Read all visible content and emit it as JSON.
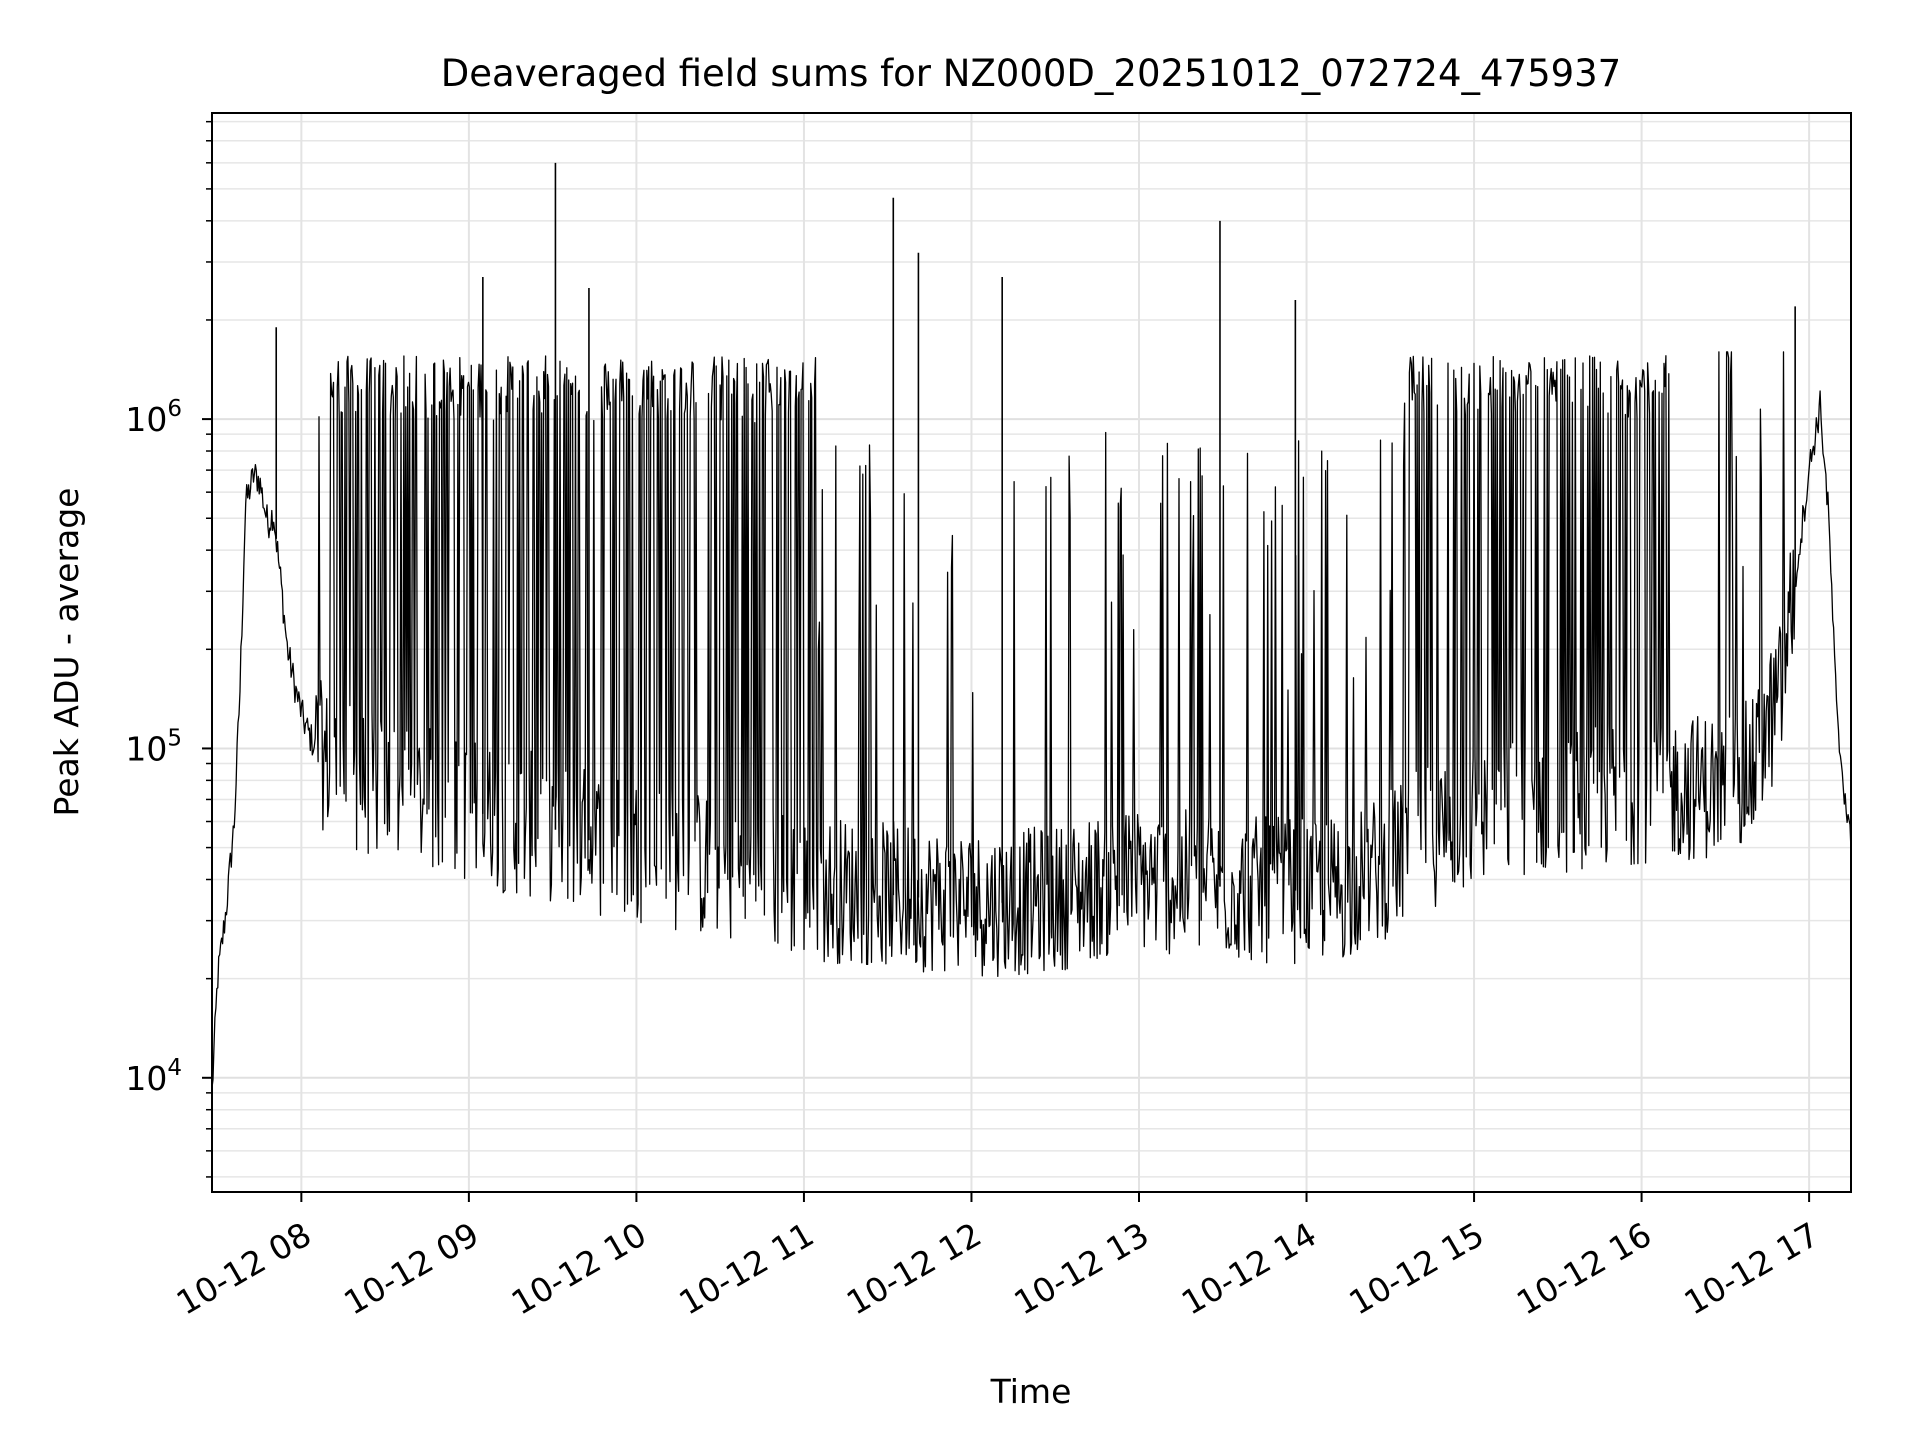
{
  "chart_data": {
    "type": "line",
    "title": "Deaveraged field sums for NZ000D_20251012_072724_475937",
    "xlabel": "Time",
    "ylabel": "Peak ADU - average",
    "yscale": "log",
    "ylim": [
      4500,
      8500000
    ],
    "xlim": [
      "2025-10-12 07:28",
      "2025-10-12 17:15"
    ],
    "grid": true,
    "line_color": "#000000",
    "x_ticks": [
      {
        "value": "2025-10-12 08:00",
        "label": "10-12 08"
      },
      {
        "value": "2025-10-12 09:00",
        "label": "10-12 09"
      },
      {
        "value": "2025-10-12 10:00",
        "label": "10-12 10"
      },
      {
        "value": "2025-10-12 11:00",
        "label": "10-12 11"
      },
      {
        "value": "2025-10-12 12:00",
        "label": "10-12 12"
      },
      {
        "value": "2025-10-12 13:00",
        "label": "10-12 13"
      },
      {
        "value": "2025-10-12 14:00",
        "label": "10-12 14"
      },
      {
        "value": "2025-10-12 15:00",
        "label": "10-12 15"
      },
      {
        "value": "2025-10-12 16:00",
        "label": "10-12 16"
      },
      {
        "value": "2025-10-12 17:00",
        "label": "10-12 17"
      }
    ],
    "y_ticks": [
      {
        "value": 10000,
        "base": "10",
        "exp": "4"
      },
      {
        "value": 100000,
        "base": "10",
        "exp": "5"
      },
      {
        "value": 1000000,
        "base": "10",
        "exp": "6"
      }
    ],
    "series": [
      {
        "x": [
          "2025-10-12 07:28",
          "2025-10-12 07:30",
          "2025-10-12 07:33",
          "2025-10-12 07:36",
          "2025-10-12 07:38",
          "2025-10-12 07:40",
          "2025-10-12 07:43",
          "2025-10-12 07:45",
          "2025-10-12 07:48",
          "2025-10-12 07:50",
          "2025-10-12 07:53",
          "2025-10-12 07:55",
          "2025-10-12 07:58",
          "2025-10-12 08:01",
          "2025-10-12 08:05",
          "2025-10-12 08:10",
          "2025-10-12 08:15",
          "2025-10-12 08:20",
          "2025-10-12 08:30",
          "2025-10-12 08:45",
          "2025-10-12 09:00",
          "2025-10-12 09:15",
          "2025-10-12 09:30",
          "2025-10-12 09:45",
          "2025-10-12 10:00",
          "2025-10-12 10:10",
          "2025-10-12 10:15",
          "2025-10-12 10:25",
          "2025-10-12 10:35",
          "2025-10-12 10:50",
          "2025-10-12 11:00",
          "2025-10-12 11:15",
          "2025-10-12 11:30",
          "2025-10-12 11:45",
          "2025-10-12 12:00",
          "2025-10-12 12:15",
          "2025-10-12 12:30",
          "2025-10-12 12:45",
          "2025-10-12 13:00",
          "2025-10-12 13:15",
          "2025-10-12 13:30",
          "2025-10-12 13:45",
          "2025-10-12 14:00",
          "2025-10-12 14:15",
          "2025-10-12 14:30",
          "2025-10-12 14:45",
          "2025-10-12 15:00",
          "2025-10-12 15:15",
          "2025-10-12 15:30",
          "2025-10-12 15:45",
          "2025-10-12 16:00",
          "2025-10-12 16:15",
          "2025-10-12 16:30",
          "2025-10-12 16:40",
          "2025-10-12 16:50",
          "2025-10-12 17:00",
          "2025-10-12 17:04",
          "2025-10-12 17:07",
          "2025-10-12 17:10",
          "2025-10-12 17:13",
          "2025-10-12 17:15"
        ],
        "y": [
          9000,
          20000,
          32000,
          60000,
          150000,
          550000,
          680000,
          650000,
          480000,
          520000,
          300000,
          200000,
          150000,
          120000,
          100000,
          90000,
          85000,
          80000,
          75000,
          70000,
          65000,
          60000,
          57000,
          52000,
          50000,
          48000,
          46000,
          44000,
          42000,
          40000,
          38000,
          37000,
          36000,
          35000,
          34000,
          34000,
          35000,
          38000,
          40000,
          39000,
          38000,
          37000,
          37000,
          38000,
          45000,
          55000,
          62000,
          68000,
          70000,
          72000,
          75000,
          76000,
          78000,
          85000,
          150000,
          700000,
          1100000,
          500000,
          120000,
          70000,
          50000
        ],
        "peaks": [
          {
            "x": "2025-10-12 07:51",
            "y": 1900000
          },
          {
            "x": "2025-10-12 09:05",
            "y": 2700000
          },
          {
            "x": "2025-10-12 09:31",
            "y": 6000000
          },
          {
            "x": "2025-10-12 09:43",
            "y": 2500000
          },
          {
            "x": "2025-10-12 11:32",
            "y": 4700000
          },
          {
            "x": "2025-10-12 11:41",
            "y": 3200000
          },
          {
            "x": "2025-10-12 12:11",
            "y": 2700000
          },
          {
            "x": "2025-10-12 13:29",
            "y": 4000000
          },
          {
            "x": "2025-10-12 13:56",
            "y": 2300000
          },
          {
            "x": "2025-10-12 16:55",
            "y": 2200000
          }
        ],
        "band_high": 1300000,
        "active_windows": [
          [
            "2025-10-12 08:10",
            "2025-10-12 10:00"
          ],
          [
            "2025-10-12 10:00",
            "2025-10-12 11:05"
          ],
          [
            "2025-10-12 14:35",
            "2025-10-12 16:10"
          ]
        ]
      }
    ]
  }
}
